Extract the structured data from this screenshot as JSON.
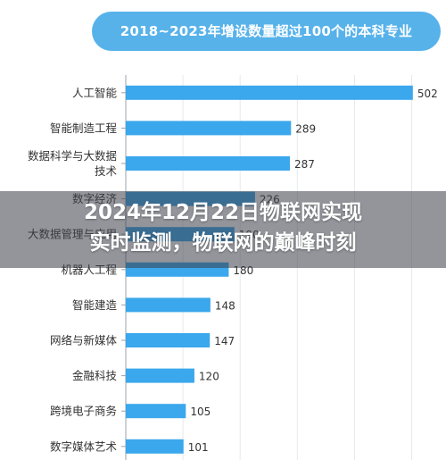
{
  "theme": {
    "bar_color": "#3ba7ec",
    "title_pill_color": "#57b2ea",
    "axis_color": "#9aa3ad",
    "label_color": "#333333"
  },
  "chart_data": {
    "type": "bar",
    "orientation": "horizontal",
    "title": "2018~2023年增设数量超过100个的本科专业",
    "categories": [
      "人工智能",
      "智能制造工程",
      "数据科学与大数据技术",
      "数字经济",
      "大数据管理与应用",
      "机器人工程",
      "智能建造",
      "网络与新媒体",
      "金融科技",
      "跨境电子商务",
      "数字媒体艺术"
    ],
    "category_display_lines": [
      [
        "人工智能"
      ],
      [
        "智能制造工程"
      ],
      [
        "数据科学与大数据",
        "技术"
      ],
      [
        "数字经济"
      ],
      [
        "大数据管理与应用"
      ],
      [
        "机器人工程"
      ],
      [
        "智能建造"
      ],
      [
        "网络与新媒体"
      ],
      [
        "金融科技"
      ],
      [
        "跨境电子商务"
      ],
      [
        "数字媒体艺术"
      ]
    ],
    "values": [
      502,
      289,
      287,
      226,
      190,
      180,
      148,
      147,
      120,
      105,
      101
    ],
    "xlim": [
      0,
      560
    ],
    "grid": true,
    "data_labels": true
  },
  "overlay": {
    "headline_line1": "2024年12月22日物联网实现",
    "headline_line2": "实时监测，物联网的巅峰时刻"
  }
}
